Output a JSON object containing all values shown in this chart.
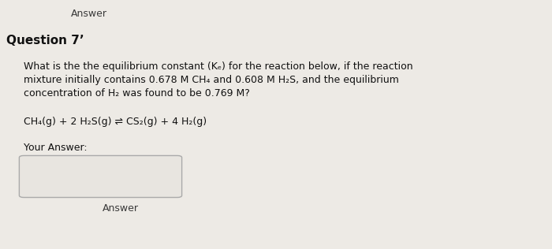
{
  "background_color": "#edeae5",
  "answer_top_text": "Answer",
  "question_label": "Question 7ʼ",
  "question_text_line1": "What is the the equilibrium constant (Kₑ) for the reaction below, if the reaction",
  "question_text_line2": "mixture initially contains 0.678 M CH₄ and 0.608 M H₂S, and the equilibrium",
  "question_text_line3": "concentration of H₂ was found to be 0.769 M?",
  "reaction_text": "CH₄(g) + 2 H₂S(g) ⇌ CS₂(g) + 4 H₂(g)",
  "your_answer_label": "Your Answer:",
  "answer_bottom_text": "Answer",
  "text_color": "#3a3a3a",
  "box_facecolor": "#e8e5e0",
  "box_edgecolor": "#aaaaaa"
}
